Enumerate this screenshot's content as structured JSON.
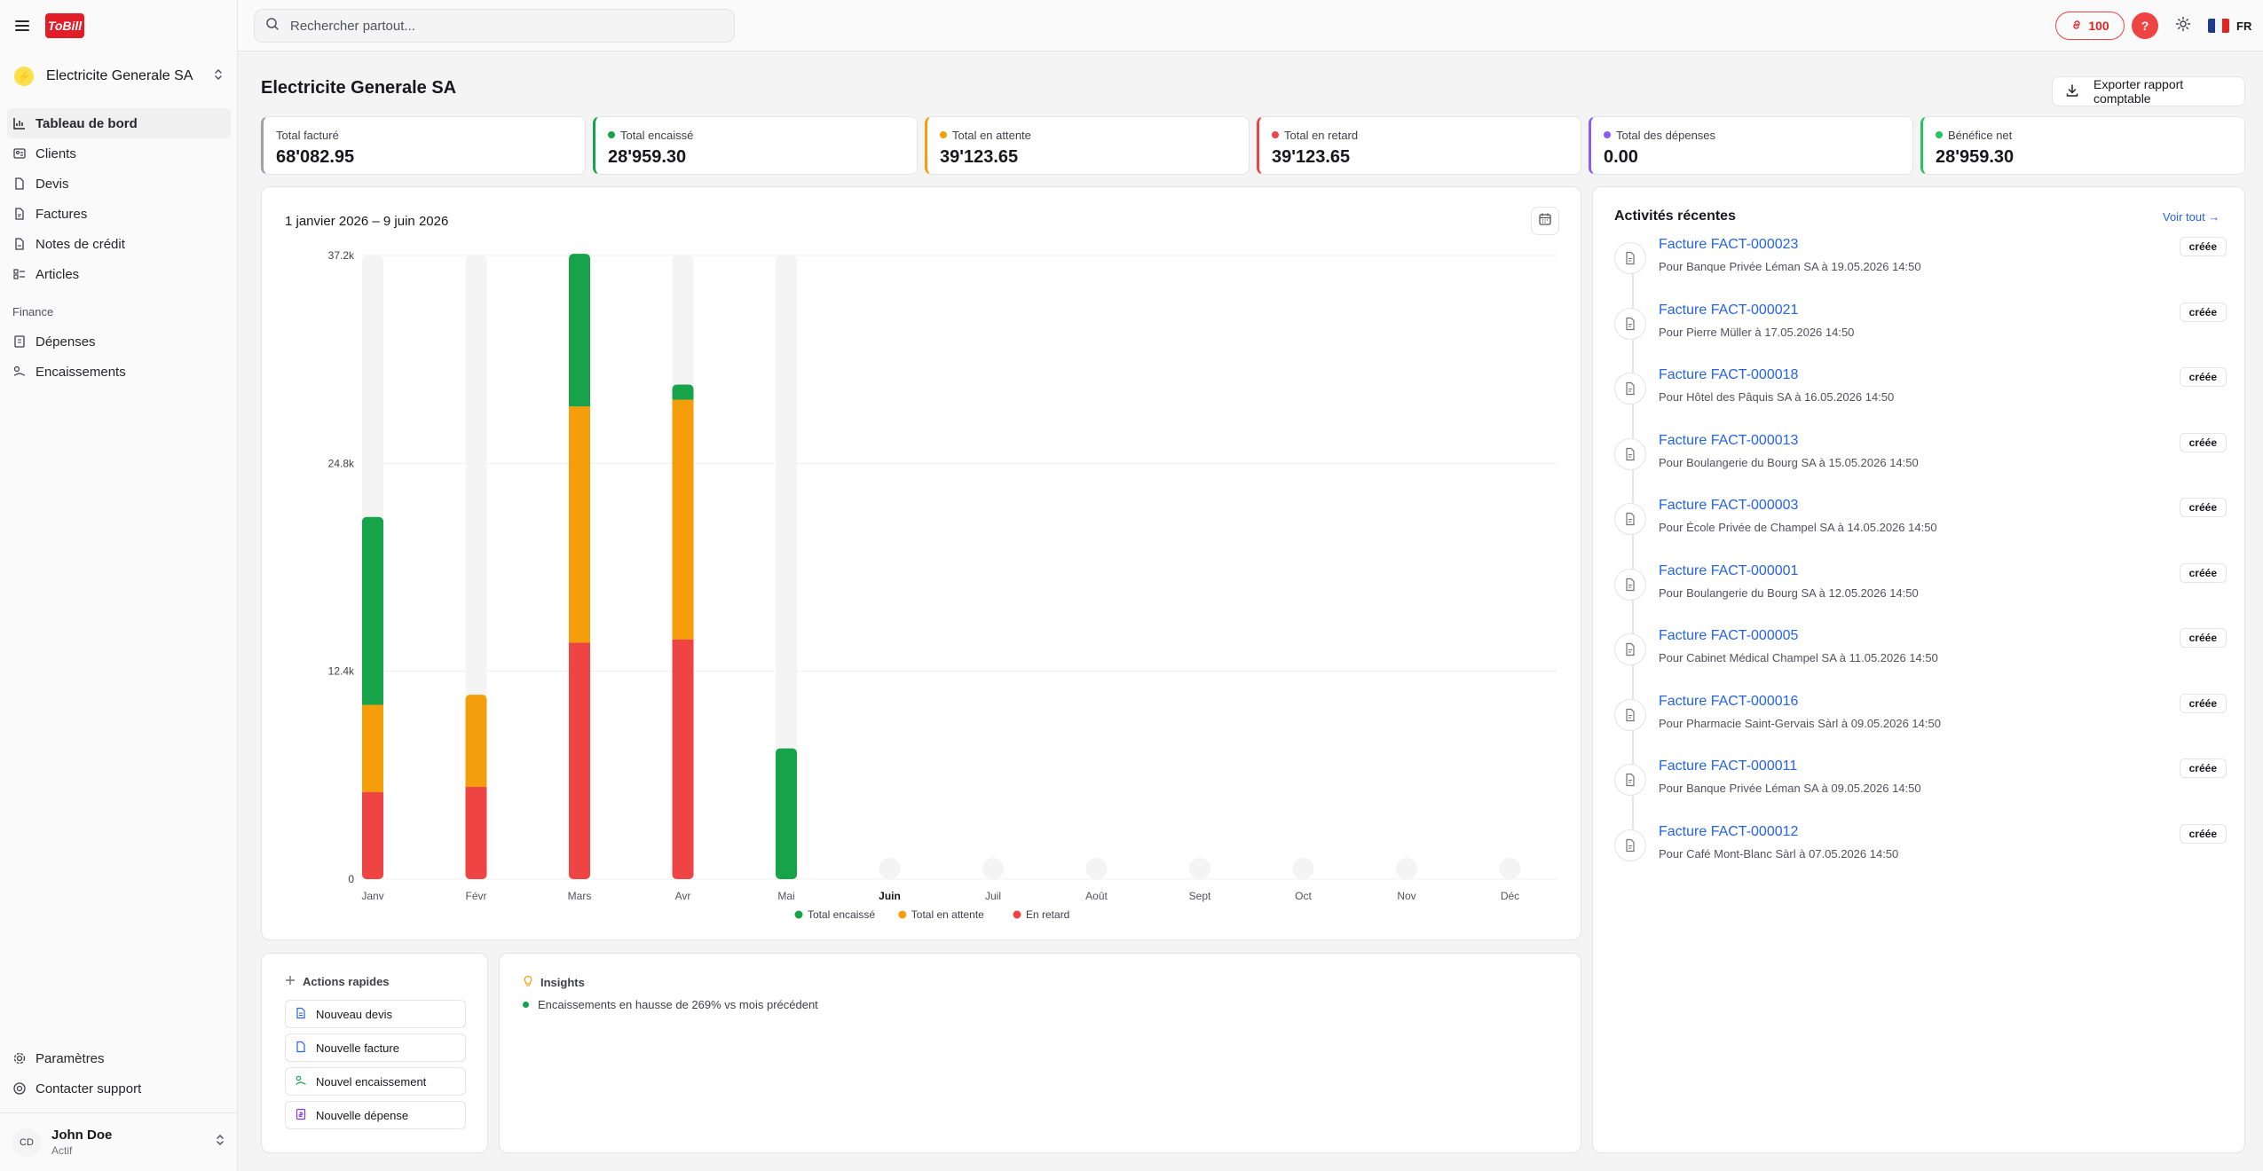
{
  "app": {
    "logo_text": "ToBill"
  },
  "sidebar": {
    "company": "Electricite Generale SA",
    "items": [
      {
        "label": "Tableau de bord",
        "icon": "chart-bar-icon",
        "active": true
      },
      {
        "label": "Clients",
        "icon": "contact-card-icon"
      },
      {
        "label": "Devis",
        "icon": "document-icon"
      },
      {
        "label": "Factures",
        "icon": "invoice-icon"
      },
      {
        "label": "Notes de crédit",
        "icon": "credit-note-icon"
      },
      {
        "label": "Articles",
        "icon": "list-icon"
      }
    ],
    "section_finance": "Finance",
    "finance_items": [
      {
        "label": "Dépenses",
        "icon": "expense-icon"
      },
      {
        "label": "Encaissements",
        "icon": "payment-icon"
      }
    ],
    "bottom_items": [
      {
        "label": "Paramètres",
        "icon": "gear-icon"
      },
      {
        "label": "Contacter support",
        "icon": "support-icon"
      }
    ],
    "user": {
      "initials": "CD",
      "name": "John Doe",
      "status": "Actif"
    }
  },
  "topbar": {
    "search_placeholder": "Rechercher partout...",
    "credits": "100",
    "help": "?",
    "lang": "FR"
  },
  "page": {
    "title": "Electricite Generale SA",
    "export_label": "Exporter rapport comptable"
  },
  "kpis": [
    {
      "label": "Total facturé",
      "value": "68'082.95",
      "color": "#a1a1aa",
      "dot": false
    },
    {
      "label": "Total encaissé",
      "value": "28'959.30",
      "color": "#16a34a",
      "dot": true
    },
    {
      "label": "Total en attente",
      "value": "39'123.65",
      "color": "#f59e0b",
      "dot": true
    },
    {
      "label": "Total en retard",
      "value": "39'123.65",
      "color": "#ef4444",
      "dot": true
    },
    {
      "label": "Total des dépenses",
      "value": "0.00",
      "color": "#8b5cf6",
      "dot": true
    },
    {
      "label": "Bénéfice net",
      "value": "28'959.30",
      "color": "#22c55e",
      "dot": true
    }
  ],
  "chart": {
    "range": "1 janvier 2026 – 9 juin 2026"
  },
  "chart_data": {
    "type": "bar",
    "stacked": true,
    "categories": [
      "Janv",
      "Févr",
      "Mars",
      "Avr",
      "Mai",
      "Juin",
      "Juil",
      "Août",
      "Sept",
      "Oct",
      "Nov",
      "Déc"
    ],
    "series": [
      {
        "name": "En retard",
        "color": "#ef4444",
        "values": [
          5200,
          5500,
          14100,
          14300,
          0,
          0,
          0,
          0,
          0,
          0,
          0,
          0
        ]
      },
      {
        "name": "Total en attente",
        "color": "#f59e0b",
        "values": [
          5200,
          5500,
          14100,
          14300,
          0,
          0,
          0,
          0,
          0,
          0,
          0,
          0
        ]
      },
      {
        "name": "Total encaissé",
        "color": "#16a34a",
        "values": [
          11200,
          0,
          9100,
          900,
          7800,
          0,
          0,
          0,
          0,
          0,
          0,
          0
        ]
      }
    ],
    "yticks": [
      "0",
      "12.4k",
      "24.8k",
      "37.2k"
    ],
    "ylim": [
      0,
      37200
    ],
    "legend": [
      "Total encaissé",
      "Total en attente",
      "En retard"
    ],
    "legend_colors": [
      "#16a34a",
      "#f59e0b",
      "#ef4444"
    ],
    "legend_position": "bottom",
    "current_month": "Juin",
    "grid": true
  },
  "activity": {
    "title": "Activités récentes",
    "see_all": "Voir tout →",
    "items": [
      {
        "link": "Facture FACT-000023",
        "desc": "Pour Banque Privée Léman SA à 19.05.2026 14:50",
        "badge": "créée"
      },
      {
        "link": "Facture FACT-000021",
        "desc": "Pour Pierre Müller à 17.05.2026 14:50",
        "badge": "créée"
      },
      {
        "link": "Facture FACT-000018",
        "desc": "Pour Hôtel des Pâquis SA à 16.05.2026 14:50",
        "badge": "créée"
      },
      {
        "link": "Facture FACT-000013",
        "desc": "Pour Boulangerie du Bourg SA à 15.05.2026 14:50",
        "badge": "créée"
      },
      {
        "link": "Facture FACT-000003",
        "desc": "Pour École Privée de Champel SA à 14.05.2026 14:50",
        "badge": "créée"
      },
      {
        "link": "Facture FACT-000001",
        "desc": "Pour Boulangerie du Bourg SA à 12.05.2026 14:50",
        "badge": "créée"
      },
      {
        "link": "Facture FACT-000005",
        "desc": "Pour Cabinet Médical Champel SA à 11.05.2026 14:50",
        "badge": "créée"
      },
      {
        "link": "Facture FACT-000016",
        "desc": "Pour Pharmacie Saint-Gervais Sàrl à 09.05.2026 14:50",
        "badge": "créée"
      },
      {
        "link": "Facture FACT-000011",
        "desc": "Pour Banque Privée Léman SA à 09.05.2026 14:50",
        "badge": "créée"
      },
      {
        "link": "Facture FACT-000012",
        "desc": "Pour Café Mont-Blanc Sàrl à 07.05.2026 14:50",
        "badge": "créée"
      }
    ]
  },
  "quick": {
    "title": "Actions rapides",
    "buttons": [
      {
        "label": "Nouveau devis",
        "color": "#2563eb"
      },
      {
        "label": "Nouvelle facture",
        "color": "#2563eb"
      },
      {
        "label": "Nouvel encaissement",
        "color": "#16a34a"
      },
      {
        "label": "Nouvelle dépense",
        "color": "#7c3aed"
      }
    ]
  },
  "insights": {
    "title": "Insights",
    "items": [
      "Encaissements en hausse de 269% vs mois précédent"
    ]
  }
}
